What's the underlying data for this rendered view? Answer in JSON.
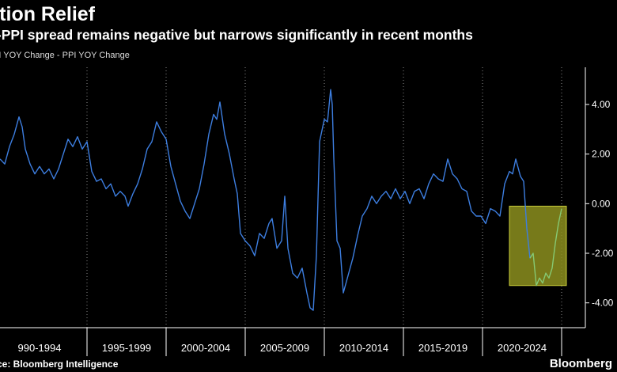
{
  "header": {
    "title": "flation Relief",
    "subtitle": "I-PPI spread remains negative but narrows significantly in recent months",
    "series_label": "PI YOY Change - PPI YOY Change"
  },
  "footer": {
    "source": "ce: Bloomberg Intelligence",
    "brand": "Bloomberg"
  },
  "colors": {
    "background": "#000000",
    "series": "#3d7ee0",
    "recent": "#86c973",
    "highlight_fill": "#8c8f1e",
    "highlight_stroke": "#c9cc3a",
    "grid": "#8a8a8a"
  },
  "chart_data": {
    "type": "line",
    "title": "flation Relief",
    "subtitle": "I-PPI spread remains negative but narrows significantly in recent months",
    "ylim": [
      -5.0,
      5.5
    ],
    "yticks": [
      4,
      2,
      0,
      -2,
      -4
    ],
    "ytick_labels": [
      "4.00",
      "2.00",
      "0.00",
      "-2.00",
      "-4.00"
    ],
    "xlim": [
      1989.0,
      2026.0
    ],
    "xtick_labels": [
      "990-1994",
      "1995-1999",
      "2000-2004",
      "2005-2009",
      "2010-2014",
      "2015-2019",
      "2020-2024"
    ],
    "xtick_centers": [
      1991.5,
      1997.0,
      2002.0,
      2007.0,
      2012.0,
      2017.0,
      2022.0
    ],
    "x_separators": [
      1994.5,
      1999.5,
      2004.5,
      2009.5,
      2014.5,
      2019.5,
      2024.5
    ],
    "grid": "vertical dotted",
    "highlight": {
      "x": [
        2021.2,
        2024.8
      ],
      "y": [
        -3.3,
        -0.1
      ]
    },
    "recent_from": 2022.6,
    "series": [
      {
        "name": "PI YOY Change - PPI YOY Change",
        "points": [
          [
            1989.0,
            1.8
          ],
          [
            1989.3,
            1.6
          ],
          [
            1989.6,
            2.3
          ],
          [
            1989.9,
            2.8
          ],
          [
            1990.2,
            3.5
          ],
          [
            1990.4,
            3.1
          ],
          [
            1990.6,
            2.2
          ],
          [
            1990.9,
            1.6
          ],
          [
            1991.2,
            1.2
          ],
          [
            1991.5,
            1.5
          ],
          [
            1991.8,
            1.2
          ],
          [
            1992.1,
            1.4
          ],
          [
            1992.4,
            1.0
          ],
          [
            1992.7,
            1.4
          ],
          [
            1993.0,
            2.0
          ],
          [
            1993.3,
            2.6
          ],
          [
            1993.6,
            2.3
          ],
          [
            1993.9,
            2.7
          ],
          [
            1994.2,
            2.2
          ],
          [
            1994.5,
            2.5
          ],
          [
            1994.8,
            1.3
          ],
          [
            1995.1,
            0.9
          ],
          [
            1995.4,
            1.0
          ],
          [
            1995.7,
            0.6
          ],
          [
            1996.0,
            0.8
          ],
          [
            1996.3,
            0.3
          ],
          [
            1996.6,
            0.5
          ],
          [
            1996.9,
            0.3
          ],
          [
            1997.1,
            -0.1
          ],
          [
            1997.4,
            0.4
          ],
          [
            1997.7,
            0.8
          ],
          [
            1998.0,
            1.4
          ],
          [
            1998.3,
            2.2
          ],
          [
            1998.6,
            2.5
          ],
          [
            1998.9,
            3.3
          ],
          [
            1999.2,
            2.9
          ],
          [
            1999.5,
            2.6
          ],
          [
            1999.8,
            1.5
          ],
          [
            2000.1,
            0.8
          ],
          [
            2000.4,
            0.1
          ],
          [
            2000.7,
            -0.3
          ],
          [
            2001.0,
            -0.6
          ],
          [
            2001.3,
            0.0
          ],
          [
            2001.6,
            0.6
          ],
          [
            2001.9,
            1.6
          ],
          [
            2002.2,
            2.8
          ],
          [
            2002.5,
            3.6
          ],
          [
            2002.7,
            3.4
          ],
          [
            2002.9,
            4.1
          ],
          [
            2003.2,
            2.8
          ],
          [
            2003.5,
            2.0
          ],
          [
            2003.8,
            1.0
          ],
          [
            2004.0,
            0.4
          ],
          [
            2004.2,
            -1.2
          ],
          [
            2004.5,
            -1.5
          ],
          [
            2004.8,
            -1.7
          ],
          [
            2005.1,
            -2.1
          ],
          [
            2005.4,
            -1.2
          ],
          [
            2005.7,
            -1.4
          ],
          [
            2006.0,
            -0.8
          ],
          [
            2006.2,
            -0.6
          ],
          [
            2006.5,
            -1.8
          ],
          [
            2006.8,
            -1.5
          ],
          [
            2007.0,
            0.3
          ],
          [
            2007.2,
            -1.8
          ],
          [
            2007.5,
            -2.8
          ],
          [
            2007.8,
            -3.0
          ],
          [
            2008.1,
            -2.6
          ],
          [
            2008.4,
            -3.6
          ],
          [
            2008.6,
            -4.2
          ],
          [
            2008.8,
            -4.3
          ],
          [
            2009.0,
            -2.1
          ],
          [
            2009.2,
            2.5
          ],
          [
            2009.5,
            3.4
          ],
          [
            2009.7,
            3.3
          ],
          [
            2009.9,
            4.6
          ],
          [
            2010.0,
            4.0
          ],
          [
            2010.1,
            1.8
          ],
          [
            2010.3,
            -1.5
          ],
          [
            2010.5,
            -1.8
          ],
          [
            2010.7,
            -3.6
          ],
          [
            2011.0,
            -2.9
          ],
          [
            2011.3,
            -2.2
          ],
          [
            2011.6,
            -1.3
          ],
          [
            2011.9,
            -0.5
          ],
          [
            2012.2,
            -0.2
          ],
          [
            2012.5,
            0.3
          ],
          [
            2012.8,
            0.0
          ],
          [
            2013.1,
            0.3
          ],
          [
            2013.4,
            0.5
          ],
          [
            2013.7,
            0.2
          ],
          [
            2014.0,
            0.6
          ],
          [
            2014.3,
            0.2
          ],
          [
            2014.6,
            0.5
          ],
          [
            2014.9,
            0.0
          ],
          [
            2015.2,
            0.5
          ],
          [
            2015.5,
            0.6
          ],
          [
            2015.8,
            0.2
          ],
          [
            2016.1,
            0.8
          ],
          [
            2016.4,
            1.2
          ],
          [
            2016.7,
            1.0
          ],
          [
            2017.0,
            0.9
          ],
          [
            2017.3,
            1.8
          ],
          [
            2017.6,
            1.2
          ],
          [
            2017.9,
            1.0
          ],
          [
            2018.2,
            0.6
          ],
          [
            2018.5,
            0.5
          ],
          [
            2018.8,
            -0.3
          ],
          [
            2019.1,
            -0.5
          ],
          [
            2019.4,
            -0.5
          ],
          [
            2019.7,
            -0.8
          ],
          [
            2020.0,
            -0.2
          ],
          [
            2020.3,
            -0.3
          ],
          [
            2020.6,
            -0.5
          ],
          [
            2020.9,
            0.8
          ],
          [
            2021.2,
            1.3
          ],
          [
            2021.4,
            1.2
          ],
          [
            2021.6,
            1.8
          ],
          [
            2021.9,
            1.1
          ],
          [
            2022.1,
            0.9
          ],
          [
            2022.3,
            -1.0
          ],
          [
            2022.5,
            -2.2
          ],
          [
            2022.7,
            -2.0
          ],
          [
            2022.9,
            -3.3
          ],
          [
            2023.1,
            -3.0
          ],
          [
            2023.3,
            -3.2
          ],
          [
            2023.5,
            -2.8
          ],
          [
            2023.7,
            -3.0
          ],
          [
            2023.9,
            -2.6
          ],
          [
            2024.1,
            -1.6
          ],
          [
            2024.3,
            -0.8
          ],
          [
            2024.5,
            -0.2
          ]
        ]
      }
    ]
  }
}
